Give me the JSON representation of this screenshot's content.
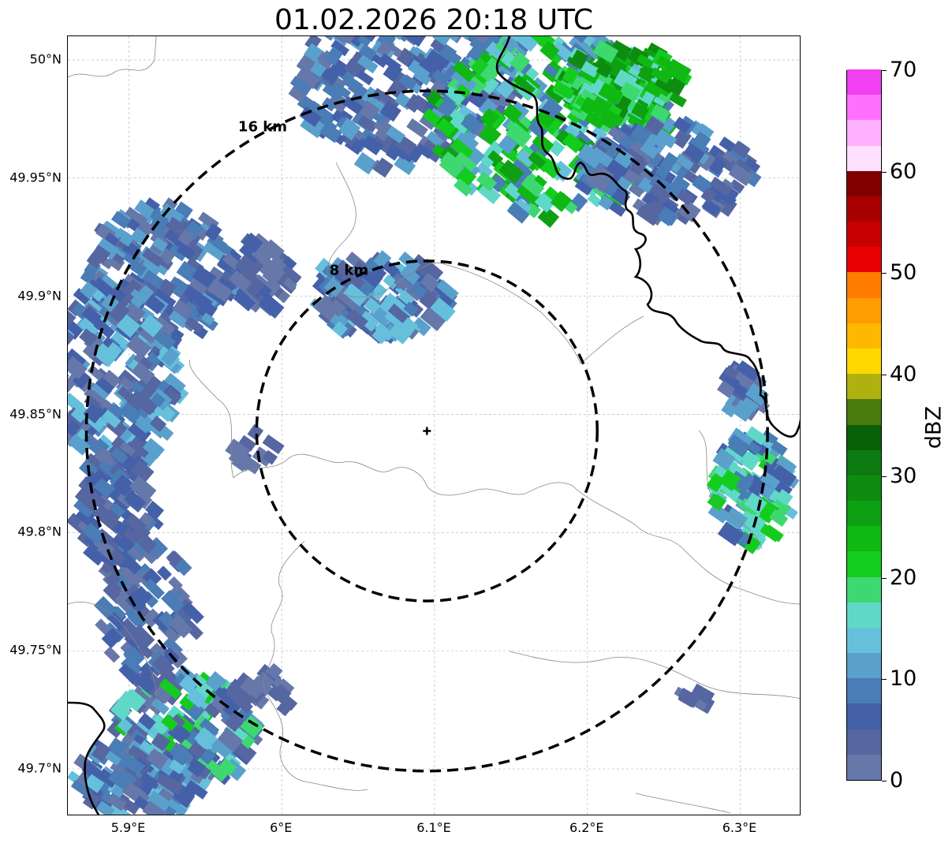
{
  "title": "01.02.2026 20:18 UTC",
  "map": {
    "lon_range": [
      5.86,
      6.34
    ],
    "lat_range": [
      49.68,
      50.01
    ],
    "lat_ticks": [
      {
        "value": 50.0,
        "label": "50°N"
      },
      {
        "value": 49.95,
        "label": "49.95°N"
      },
      {
        "value": 49.9,
        "label": "49.9°N"
      },
      {
        "value": 49.85,
        "label": "49.85°N"
      },
      {
        "value": 49.8,
        "label": "49.8°N"
      },
      {
        "value": 49.75,
        "label": "49.75°N"
      },
      {
        "value": 49.7,
        "label": "49.7°N"
      }
    ],
    "lon_ticks": [
      {
        "value": 5.9,
        "label": "5.9°E"
      },
      {
        "value": 6.0,
        "label": "6°E"
      },
      {
        "value": 6.1,
        "label": "6.1°E"
      },
      {
        "value": 6.2,
        "label": "6.2°E"
      },
      {
        "value": 6.3,
        "label": "6.3°E"
      }
    ],
    "radar_site": {
      "lon": 6.095,
      "lat": 49.843
    },
    "range_rings": [
      {
        "radius_km": 8,
        "label": "8 km"
      },
      {
        "radius_km": 16,
        "label": "16 km"
      }
    ]
  },
  "colorbar": {
    "label": "dBZ",
    "min": 0,
    "max": 70,
    "ticks": [
      "0",
      "10",
      "20",
      "30",
      "40",
      "50",
      "60",
      "70"
    ],
    "colors": [
      "#6677aa",
      "#5566a0",
      "#4460a8",
      "#4a7cb6",
      "#5aa0cc",
      "#66c0dc",
      "#60d8c8",
      "#3ed870",
      "#14cc1e",
      "#0fb812",
      "#0ea012",
      "#0e8c10",
      "#0c7a10",
      "#086008",
      "#4a7a0c",
      "#b0b010",
      "#ffd800",
      "#ffb800",
      "#ff9c00",
      "#ff7c00",
      "#e80000",
      "#c80000",
      "#a80000",
      "#800000",
      "#ffe0ff",
      "#ffb0ff",
      "#ff70ff",
      "#f040f0"
    ]
  }
}
